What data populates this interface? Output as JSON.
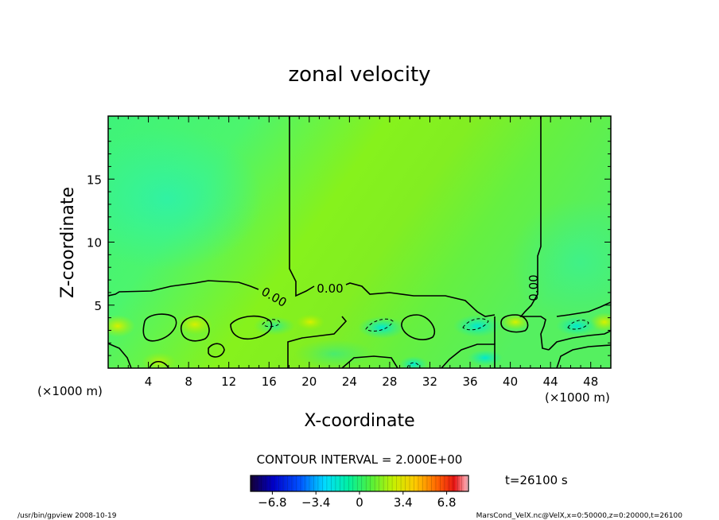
{
  "chart_data": {
    "type": "heatmap",
    "title": "zonal velocity",
    "xlabel": "X-coordinate",
    "ylabel": "Z-coordinate",
    "x_unit_left": "(×1000 m)",
    "x_unit_right": "(×1000 m)",
    "xlim": [
      0,
      50
    ],
    "ylim": [
      0,
      20
    ],
    "x_ticks": [
      4,
      8,
      12,
      16,
      20,
      24,
      28,
      32,
      36,
      40,
      44,
      48
    ],
    "y_ticks": [
      5,
      10,
      15
    ],
    "contour_labels": [
      "0.00",
      "0.00",
      "0.00"
    ],
    "contour_interval_text": "CONTOUR INTERVAL = 2.000E+00",
    "colorbar": {
      "ticks": [
        "−6.8",
        "−3.4",
        "0",
        "3.4",
        "6.8"
      ],
      "min": -8.5,
      "max": 8.5
    },
    "time_text": "t=26100 s",
    "footer_left": "/usr/bin/gpview   2008-10-19",
    "footer_right": "MarsCond_VelX.nc@VelX,x=0:50000,z=0:20000,t=26100"
  }
}
